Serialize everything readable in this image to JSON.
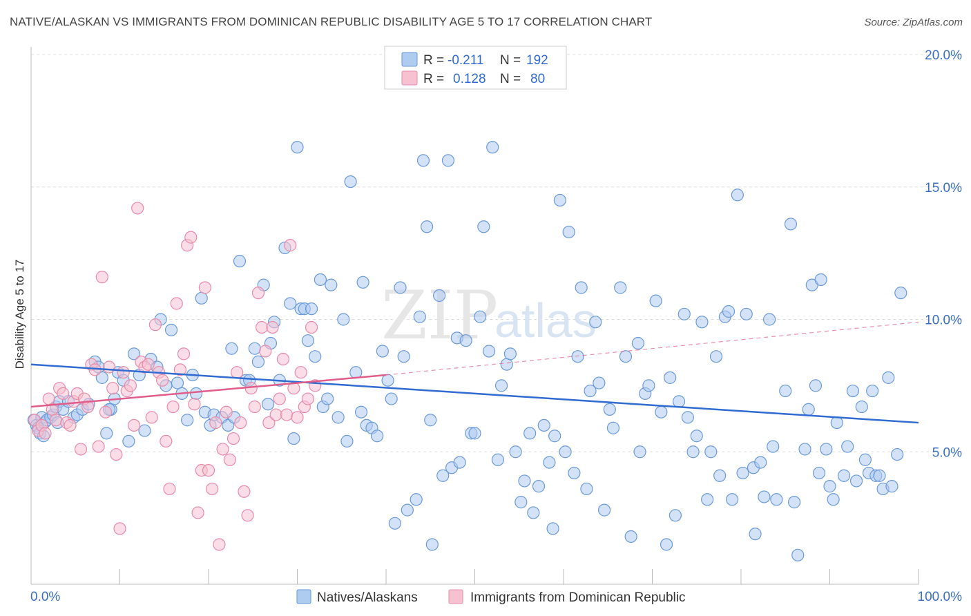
{
  "title": "NATIVE/ALASKAN VS IMMIGRANTS FROM DOMINICAN REPUBLIC DISABILITY AGE 5 TO 17 CORRELATION CHART",
  "source": "Source: ZipAtlas.com",
  "watermark": {
    "zip": "ZIP",
    "atlas": "atlas"
  },
  "legend": {
    "r_label": "R =",
    "n_label": "N =",
    "series": [
      {
        "r": "-0.211",
        "n": "192"
      },
      {
        "r": "0.128",
        "n": "80"
      }
    ]
  },
  "colors": {
    "blue_fill": "#aecbf0",
    "blue_stroke": "#6a9ad8",
    "blue_line": "#2f6bd0",
    "pink_fill": "#f6c1d1",
    "pink_stroke": "#e88aa8",
    "pink_line": "#e05c8a",
    "tick_text": "#3a6fc4",
    "grid": "#dddddd"
  },
  "chart_data": {
    "type": "scatter",
    "title": "NATIVE/ALASKAN VS IMMIGRANTS FROM DOMINICAN REPUBLIC DISABILITY AGE 5 TO 17 CORRELATION CHART",
    "xlabel": "",
    "ylabel": "Disability Age 5 to 17",
    "xlim": [
      0,
      100
    ],
    "ylim": [
      0,
      20.5
    ],
    "x_tick_labels": [
      "0.0%",
      "100.0%"
    ],
    "y_ticks": [
      5,
      10,
      15,
      20
    ],
    "y_tick_labels": [
      "5.0%",
      "10.0%",
      "15.0%",
      "20.0%"
    ],
    "grid": "horizontal dashed",
    "legend_position": "top-center",
    "series": [
      {
        "name": "Natives/Alaskans",
        "color": "#6a9ad8",
        "trend": {
          "x": [
            0,
            100
          ],
          "y": [
            8.3,
            6.1
          ]
        },
        "points": [
          [
            0.3,
            6.2
          ],
          [
            0.6,
            6.0
          ],
          [
            0.8,
            5.9
          ],
          [
            1.0,
            5.7
          ],
          [
            1.2,
            6.3
          ],
          [
            1.5,
            6.1
          ],
          [
            1.8,
            6.2
          ],
          [
            2.2,
            6.3
          ],
          [
            2.5,
            6.4
          ],
          [
            2.8,
            6.7
          ],
          [
            3.2,
            6.9
          ],
          [
            3.6,
            6.6
          ],
          [
            4.2,
            6.9
          ],
          [
            4.8,
            6.3
          ],
          [
            5.2,
            6.4
          ],
          [
            5.8,
            6.6
          ],
          [
            6.5,
            6.8
          ],
          [
            7.2,
            8.4
          ],
          [
            7.6,
            8.2
          ],
          [
            8.0,
            7.8
          ],
          [
            8.5,
            5.7
          ],
          [
            9.0,
            6.6
          ],
          [
            9.8,
            8.0
          ],
          [
            10.4,
            7.7
          ],
          [
            11.0,
            5.4
          ],
          [
            11.6,
            8.7
          ],
          [
            12.2,
            7.9
          ],
          [
            12.8,
            5.8
          ],
          [
            13.5,
            8.5
          ],
          [
            14.2,
            8.2
          ],
          [
            14.6,
            10.0
          ],
          [
            15.2,
            7.5
          ],
          [
            15.8,
            9.6
          ],
          [
            16.5,
            7.6
          ],
          [
            17.0,
            7.2
          ],
          [
            17.6,
            6.2
          ],
          [
            18.2,
            7.9
          ],
          [
            18.6,
            7.2
          ],
          [
            19.2,
            10.8
          ],
          [
            19.6,
            6.5
          ],
          [
            20.2,
            6.0
          ],
          [
            20.6,
            6.4
          ],
          [
            21.5,
            6.3
          ],
          [
            22.2,
            6.0
          ],
          [
            22.6,
            8.9
          ],
          [
            23.5,
            12.2
          ],
          [
            24.2,
            7.7
          ],
          [
            24.6,
            7.7
          ],
          [
            25.2,
            8.9
          ],
          [
            25.6,
            8.4
          ],
          [
            26.2,
            11.3
          ],
          [
            26.7,
            6.8
          ],
          [
            27.0,
            9.1
          ],
          [
            27.4,
            9.9
          ],
          [
            28.0,
            7.7
          ],
          [
            28.6,
            12.7
          ],
          [
            29.2,
            10.6
          ],
          [
            29.6,
            5.5
          ],
          [
            30.0,
            16.5
          ],
          [
            30.4,
            10.4
          ],
          [
            30.8,
            10.4
          ],
          [
            31.2,
            9.2
          ],
          [
            31.6,
            10.4
          ],
          [
            32.0,
            8.6
          ],
          [
            32.6,
            11.5
          ],
          [
            32.9,
            6.7
          ],
          [
            33.4,
            7.0
          ],
          [
            33.8,
            11.3
          ],
          [
            34.6,
            6.3
          ],
          [
            35.2,
            10.0
          ],
          [
            35.6,
            5.4
          ],
          [
            36.0,
            15.2
          ],
          [
            36.6,
            8.0
          ],
          [
            37.4,
            11.4
          ],
          [
            37.8,
            6.0
          ],
          [
            38.4,
            5.9
          ],
          [
            39.0,
            5.6
          ],
          [
            39.6,
            8.8
          ],
          [
            40.2,
            7.7
          ],
          [
            40.6,
            7.0
          ],
          [
            41.0,
            2.3
          ],
          [
            41.6,
            11.2
          ],
          [
            42.0,
            8.6
          ],
          [
            42.4,
            2.8
          ],
          [
            43.4,
            3.2
          ],
          [
            43.8,
            10.1
          ],
          [
            44.2,
            16.0
          ],
          [
            44.6,
            13.5
          ],
          [
            45.0,
            6.2
          ],
          [
            45.2,
            1.5
          ],
          [
            46.0,
            10.9
          ],
          [
            46.4,
            4.1
          ],
          [
            47.0,
            16.0
          ],
          [
            47.4,
            4.4
          ],
          [
            48.0,
            9.3
          ],
          [
            48.3,
            4.6
          ],
          [
            49.0,
            9.2
          ],
          [
            49.6,
            5.7
          ],
          [
            50.0,
            5.7
          ],
          [
            50.6,
            10.1
          ],
          [
            51.0,
            13.5
          ],
          [
            51.6,
            8.8
          ],
          [
            52.0,
            16.5
          ],
          [
            52.6,
            4.7
          ],
          [
            53.0,
            7.5
          ],
          [
            53.6,
            8.3
          ],
          [
            54.0,
            8.7
          ],
          [
            54.6,
            5.0
          ],
          [
            55.2,
            3.1
          ],
          [
            55.6,
            3.9
          ],
          [
            56.2,
            5.7
          ],
          [
            56.6,
            2.7
          ],
          [
            57.2,
            3.7
          ],
          [
            58.4,
            4.6
          ],
          [
            58.8,
            2.1
          ],
          [
            59.0,
            5.6
          ],
          [
            59.6,
            14.5
          ],
          [
            60.2,
            5.0
          ],
          [
            60.6,
            13.3
          ],
          [
            61.2,
            4.2
          ],
          [
            61.6,
            8.6
          ],
          [
            62.0,
            11.2
          ],
          [
            62.6,
            3.6
          ],
          [
            63.0,
            7.3
          ],
          [
            63.6,
            9.9
          ],
          [
            64.0,
            7.6
          ],
          [
            64.6,
            2.8
          ],
          [
            65.2,
            6.6
          ],
          [
            65.6,
            5.9
          ],
          [
            66.4,
            11.2
          ],
          [
            67.0,
            8.6
          ],
          [
            67.6,
            1.8
          ],
          [
            68.4,
            9.1
          ],
          [
            68.6,
            5.0
          ],
          [
            69.2,
            7.2
          ],
          [
            69.6,
            7.5
          ],
          [
            70.4,
            10.7
          ],
          [
            71.0,
            6.5
          ],
          [
            71.6,
            1.5
          ],
          [
            72.0,
            7.8
          ],
          [
            72.6,
            2.6
          ],
          [
            73.0,
            6.9
          ],
          [
            73.6,
            10.2
          ],
          [
            74.0,
            6.3
          ],
          [
            74.6,
            5.0
          ],
          [
            75.0,
            5.6
          ],
          [
            75.6,
            9.9
          ],
          [
            76.2,
            3.2
          ],
          [
            76.6,
            5.0
          ],
          [
            77.2,
            8.6
          ],
          [
            77.6,
            4.1
          ],
          [
            78.2,
            10.1
          ],
          [
            78.6,
            10.3
          ],
          [
            79.0,
            3.2
          ],
          [
            79.6,
            14.7
          ],
          [
            80.2,
            4.2
          ],
          [
            80.6,
            10.2
          ],
          [
            81.4,
            4.4
          ],
          [
            81.6,
            1.9
          ],
          [
            82.2,
            4.6
          ],
          [
            82.6,
            3.3
          ],
          [
            83.2,
            10.0
          ],
          [
            83.6,
            5.2
          ],
          [
            84.0,
            3.2
          ],
          [
            85.0,
            7.3
          ],
          [
            85.6,
            13.6
          ],
          [
            86.0,
            3.1
          ],
          [
            86.4,
            1.1
          ],
          [
            87.2,
            5.1
          ],
          [
            87.6,
            6.6
          ],
          [
            88.0,
            11.3
          ],
          [
            88.4,
            7.5
          ],
          [
            88.8,
            4.2
          ],
          [
            89.0,
            11.5
          ],
          [
            89.6,
            5.1
          ],
          [
            90.0,
            3.7
          ],
          [
            90.4,
            3.2
          ],
          [
            90.8,
            6.1
          ],
          [
            91.6,
            4.1
          ],
          [
            92.0,
            5.2
          ],
          [
            92.6,
            7.3
          ],
          [
            93.0,
            3.9
          ],
          [
            93.6,
            6.7
          ],
          [
            94.0,
            4.7
          ],
          [
            94.4,
            4.2
          ],
          [
            94.8,
            7.3
          ],
          [
            95.2,
            4.1
          ],
          [
            95.6,
            4.1
          ],
          [
            96.0,
            3.6
          ],
          [
            96.6,
            7.8
          ],
          [
            97.0,
            3.7
          ],
          [
            97.6,
            4.9
          ],
          [
            98.0,
            11.0
          ],
          [
            1.4,
            5.6
          ],
          [
            3.0,
            6.1
          ],
          [
            8.8,
            6.6
          ],
          [
            9.4,
            7.0
          ],
          [
            22.9,
            6.3
          ],
          [
            37.2,
            6.5
          ],
          [
            57.8,
            6.0
          ]
        ]
      },
      {
        "name": "Immigrants from Dominican Republic",
        "color": "#e88aa8",
        "trend": {
          "x": [
            0,
            40,
            100
          ],
          "y": [
            6.7,
            7.9,
            9.9
          ]
        },
        "points": [
          [
            0.4,
            6.2
          ],
          [
            0.8,
            5.8
          ],
          [
            1.2,
            6.0
          ],
          [
            1.6,
            5.7
          ],
          [
            2.0,
            7.0
          ],
          [
            2.4,
            6.6
          ],
          [
            2.8,
            6.2
          ],
          [
            3.2,
            7.4
          ],
          [
            3.6,
            7.2
          ],
          [
            4.0,
            6.1
          ],
          [
            4.4,
            6.0
          ],
          [
            4.8,
            6.9
          ],
          [
            5.2,
            7.2
          ],
          [
            5.6,
            5.1
          ],
          [
            6.0,
            7.0
          ],
          [
            6.4,
            6.7
          ],
          [
            6.8,
            8.3
          ],
          [
            7.2,
            8.1
          ],
          [
            7.6,
            5.2
          ],
          [
            8.0,
            11.6
          ],
          [
            8.4,
            6.5
          ],
          [
            8.8,
            8.2
          ],
          [
            9.2,
            7.4
          ],
          [
            9.6,
            4.9
          ],
          [
            10.0,
            2.1
          ],
          [
            10.4,
            8.0
          ],
          [
            10.8,
            7.3
          ],
          [
            11.2,
            7.5
          ],
          [
            11.6,
            6.0
          ],
          [
            12.0,
            14.2
          ],
          [
            12.4,
            8.4
          ],
          [
            12.8,
            8.2
          ],
          [
            13.2,
            8.3
          ],
          [
            13.6,
            6.3
          ],
          [
            14.0,
            9.8
          ],
          [
            14.4,
            8.0
          ],
          [
            14.8,
            7.7
          ],
          [
            15.2,
            5.4
          ],
          [
            15.6,
            3.6
          ],
          [
            16.0,
            6.7
          ],
          [
            16.4,
            10.6
          ],
          [
            16.8,
            8.1
          ],
          [
            17.2,
            8.7
          ],
          [
            17.6,
            12.8
          ],
          [
            18.0,
            13.1
          ],
          [
            18.4,
            6.8
          ],
          [
            18.8,
            2.7
          ],
          [
            19.2,
            4.3
          ],
          [
            19.6,
            11.2
          ],
          [
            20.0,
            4.3
          ],
          [
            20.4,
            3.6
          ],
          [
            20.8,
            6.1
          ],
          [
            21.2,
            1.5
          ],
          [
            21.6,
            5.1
          ],
          [
            22.0,
            6.5
          ],
          [
            22.4,
            4.7
          ],
          [
            22.8,
            5.5
          ],
          [
            23.2,
            8.0
          ],
          [
            23.6,
            6.1
          ],
          [
            24.0,
            3.5
          ],
          [
            24.4,
            2.6
          ],
          [
            24.8,
            7.4
          ],
          [
            25.2,
            6.7
          ],
          [
            25.6,
            11.0
          ],
          [
            26.0,
            9.7
          ],
          [
            26.4,
            8.8
          ],
          [
            26.8,
            6.1
          ],
          [
            27.2,
            9.7
          ],
          [
            27.6,
            6.4
          ],
          [
            28.0,
            7.0
          ],
          [
            28.4,
            8.5
          ],
          [
            28.8,
            6.4
          ],
          [
            29.2,
            12.8
          ],
          [
            29.6,
            7.4
          ],
          [
            30.0,
            6.3
          ],
          [
            30.4,
            8.0
          ],
          [
            30.8,
            6.7
          ],
          [
            31.2,
            7.0
          ],
          [
            31.6,
            9.7
          ],
          [
            32.0,
            7.5
          ]
        ]
      }
    ]
  },
  "bottom_legend": [
    {
      "label": "Natives/Alaskans"
    },
    {
      "label": "Immigrants from Dominican Republic"
    }
  ]
}
